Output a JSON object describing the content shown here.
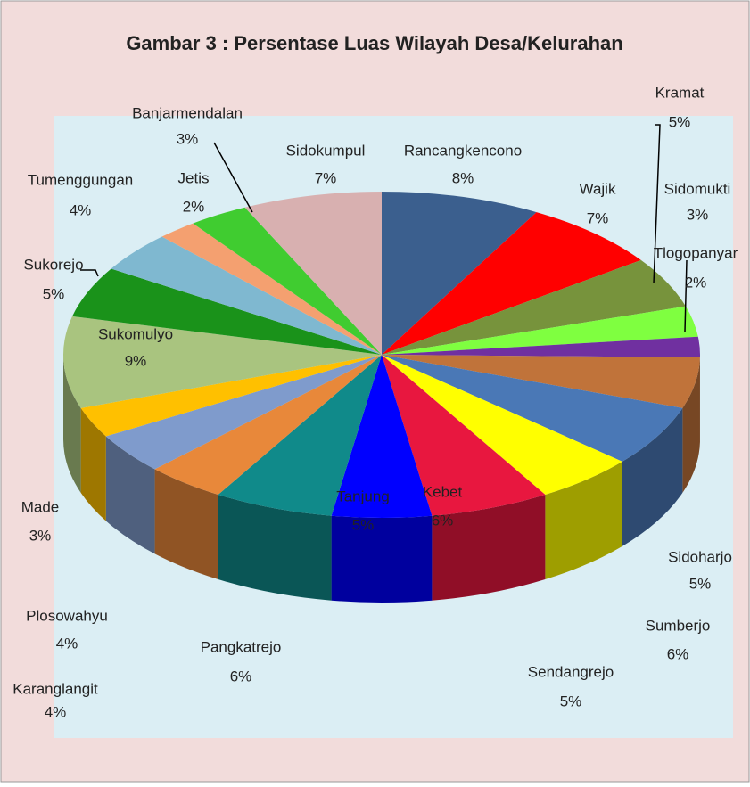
{
  "chart_data": {
    "type": "pie3d",
    "title": "Gambar 3 : Persentase Luas Wilayah Desa/Kelurahan",
    "categories": [
      "Rancangkencono",
      "Wajik",
      "Kramat",
      "Sidomukti",
      "Tlogopanyar",
      "Sidoharjo",
      "Sumberjo",
      "Sendangrejo",
      "Kebet",
      "Tanjung",
      "Pangkatrejo",
      "Karanglangit",
      "Plosowahyu",
      "Made",
      "Sukomulyo",
      "Sukorejo",
      "Tumenggungan",
      "Jetis",
      "Banjarmendalan",
      "Sidokumpul"
    ],
    "values": [
      8,
      7,
      5,
      3,
      2,
      5,
      6,
      5,
      6,
      5,
      6,
      4,
      4,
      3,
      9,
      5,
      4,
      2,
      3,
      7
    ],
    "value_labels": [
      "8%",
      "7%",
      "5%",
      "3%",
      "2%",
      "5%",
      "6%",
      "5%",
      "6%",
      "5%",
      "6%",
      "4%",
      "4%",
      "3%",
      "9%",
      "5%",
      "4%",
      "2%",
      "3%",
      "7%"
    ],
    "colors": [
      "#3b5f8e",
      "#ff0000",
      "#77933c",
      "#7fff40",
      "#7030a0",
      "#c0733a",
      "#4a78b6",
      "#ffff00",
      "#e8173f",
      "#0000ff",
      "#108a8a",
      "#e8883a",
      "#7f9bcc",
      "#ffc000",
      "#a9c47f",
      "#1a921a",
      "#7fb8d0",
      "#f4a070",
      "#40cc30",
      "#d8b0b0"
    ]
  }
}
